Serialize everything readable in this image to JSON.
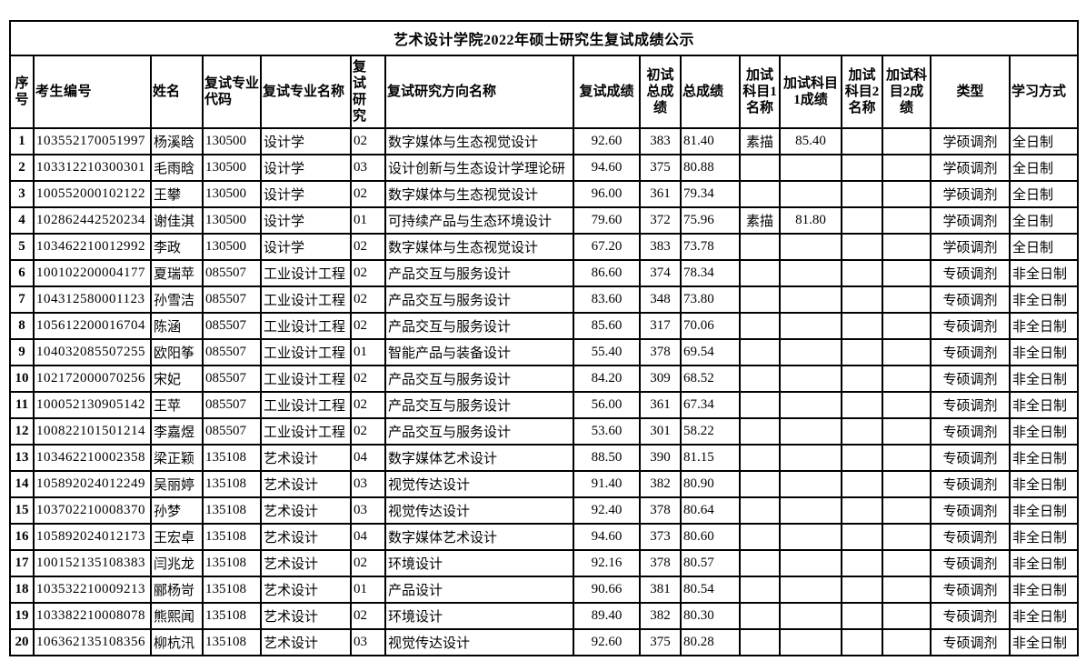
{
  "title": "艺术设计学院2022年硕士研究生复试成绩公示",
  "table": {
    "columns": [
      {
        "key": "seq",
        "label": "序\n号"
      },
      {
        "key": "id",
        "label": "考生编号"
      },
      {
        "key": "name",
        "label": "姓名"
      },
      {
        "key": "major_code",
        "label": "复试专业\n代码"
      },
      {
        "key": "major_name",
        "label": "复试专业名称"
      },
      {
        "key": "dir_code",
        "label": "复\n试\n研\n究"
      },
      {
        "key": "dir_name",
        "label": "复试研究方向名称"
      },
      {
        "key": "retest_score",
        "label": "复试成绩"
      },
      {
        "key": "initial_total",
        "label": "初试\n总成\n绩"
      },
      {
        "key": "total",
        "label": "总成绩"
      },
      {
        "key": "extra1_name",
        "label": "加试\n科目1\n名称"
      },
      {
        "key": "extra1_score",
        "label": "加试科目\n1成绩"
      },
      {
        "key": "extra2_name",
        "label": "加试\n科目2\n名称"
      },
      {
        "key": "extra2_score",
        "label": "加试科\n目2成绩"
      },
      {
        "key": "type",
        "label": "类型"
      },
      {
        "key": "mode",
        "label": "学习方式"
      }
    ],
    "rows": [
      {
        "seq": "1",
        "id": "103552170051997",
        "name": "杨溪晗",
        "major_code": "130500",
        "major_name": "设计学",
        "dir_code": "02",
        "dir_name": "数字媒体与生态视觉设计",
        "retest_score": "92.60",
        "initial_total": "383",
        "total": "81.40",
        "extra1_name": "素描",
        "extra1_score": "85.40",
        "extra2_name": "",
        "extra2_score": "",
        "type": "学硕调剂",
        "mode": "全日制"
      },
      {
        "seq": "2",
        "id": "103312210300301",
        "name": "毛雨晗",
        "major_code": "130500",
        "major_name": "设计学",
        "dir_code": "03",
        "dir_name": "设计创新与生态设计学理论研",
        "retest_score": "94.60",
        "initial_total": "375",
        "total": "80.88",
        "extra1_name": "",
        "extra1_score": "",
        "extra2_name": "",
        "extra2_score": "",
        "type": "学硕调剂",
        "mode": "全日制"
      },
      {
        "seq": "3",
        "id": "100552000102122",
        "name": "王攀",
        "major_code": "130500",
        "major_name": "设计学",
        "dir_code": "02",
        "dir_name": "数字媒体与生态视觉设计",
        "retest_score": "96.00",
        "initial_total": "361",
        "total": "79.34",
        "extra1_name": "",
        "extra1_score": "",
        "extra2_name": "",
        "extra2_score": "",
        "type": "学硕调剂",
        "mode": "全日制"
      },
      {
        "seq": "4",
        "id": "102862442520234",
        "name": "谢佳淇",
        "major_code": "130500",
        "major_name": "设计学",
        "dir_code": "01",
        "dir_name": "可持续产品与生态环境设计",
        "retest_score": "79.60",
        "initial_total": "372",
        "total": "75.96",
        "extra1_name": "素描",
        "extra1_score": "81.80",
        "extra2_name": "",
        "extra2_score": "",
        "type": "学硕调剂",
        "mode": "全日制"
      },
      {
        "seq": "5",
        "id": "103462210012992",
        "name": "李政",
        "major_code": "130500",
        "major_name": "设计学",
        "dir_code": "02",
        "dir_name": "数字媒体与生态视觉设计",
        "retest_score": "67.20",
        "initial_total": "383",
        "total": "73.78",
        "extra1_name": "",
        "extra1_score": "",
        "extra2_name": "",
        "extra2_score": "",
        "type": "学硕调剂",
        "mode": "全日制"
      },
      {
        "seq": "6",
        "id": "100102200004177",
        "name": "夏瑞苹",
        "major_code": "085507",
        "major_name": "工业设计工程",
        "dir_code": "02",
        "dir_name": "产品交互与服务设计",
        "retest_score": "86.60",
        "initial_total": "374",
        "total": "78.34",
        "extra1_name": "",
        "extra1_score": "",
        "extra2_name": "",
        "extra2_score": "",
        "type": "专硕调剂",
        "mode": "非全日制"
      },
      {
        "seq": "7",
        "id": "104312580001123",
        "name": "孙雪洁",
        "major_code": "085507",
        "major_name": "工业设计工程",
        "dir_code": "02",
        "dir_name": "产品交互与服务设计",
        "retest_score": "83.60",
        "initial_total": "348",
        "total": "73.80",
        "extra1_name": "",
        "extra1_score": "",
        "extra2_name": "",
        "extra2_score": "",
        "type": "专硕调剂",
        "mode": "非全日制"
      },
      {
        "seq": "8",
        "id": "105612200016704",
        "name": "陈涵",
        "major_code": "085507",
        "major_name": "工业设计工程",
        "dir_code": "02",
        "dir_name": "产品交互与服务设计",
        "retest_score": "85.60",
        "initial_total": "317",
        "total": "70.06",
        "extra1_name": "",
        "extra1_score": "",
        "extra2_name": "",
        "extra2_score": "",
        "type": "专硕调剂",
        "mode": "非全日制"
      },
      {
        "seq": "9",
        "id": "104032085507255",
        "name": "欧阳筝",
        "major_code": "085507",
        "major_name": "工业设计工程",
        "dir_code": "01",
        "dir_name": "智能产品与装备设计",
        "retest_score": "55.40",
        "initial_total": "378",
        "total": "69.54",
        "extra1_name": "",
        "extra1_score": "",
        "extra2_name": "",
        "extra2_score": "",
        "type": "专硕调剂",
        "mode": "非全日制"
      },
      {
        "seq": "10",
        "id": "102172000070256",
        "name": "宋妃",
        "major_code": "085507",
        "major_name": "工业设计工程",
        "dir_code": "02",
        "dir_name": "产品交互与服务设计",
        "retest_score": "84.20",
        "initial_total": "309",
        "total": "68.52",
        "extra1_name": "",
        "extra1_score": "",
        "extra2_name": "",
        "extra2_score": "",
        "type": "专硕调剂",
        "mode": "非全日制"
      },
      {
        "seq": "11",
        "id": "100052130905142",
        "name": "王苹",
        "major_code": "085507",
        "major_name": "工业设计工程",
        "dir_code": "02",
        "dir_name": "产品交互与服务设计",
        "retest_score": "56.00",
        "initial_total": "361",
        "total": "67.34",
        "extra1_name": "",
        "extra1_score": "",
        "extra2_name": "",
        "extra2_score": "",
        "type": "专硕调剂",
        "mode": "非全日制"
      },
      {
        "seq": "12",
        "id": "100822101501214",
        "name": "李嘉煜",
        "major_code": "085507",
        "major_name": "工业设计工程",
        "dir_code": "02",
        "dir_name": "产品交互与服务设计",
        "retest_score": "53.60",
        "initial_total": "301",
        "total": "58.22",
        "extra1_name": "",
        "extra1_score": "",
        "extra2_name": "",
        "extra2_score": "",
        "type": "专硕调剂",
        "mode": "非全日制"
      },
      {
        "seq": "13",
        "id": "103462210002358",
        "name": "梁正颖",
        "major_code": "135108",
        "major_name": "艺术设计",
        "dir_code": "04",
        "dir_name": "数字媒体艺术设计",
        "retest_score": "88.50",
        "initial_total": "390",
        "total": "81.15",
        "extra1_name": "",
        "extra1_score": "",
        "extra2_name": "",
        "extra2_score": "",
        "type": "专硕调剂",
        "mode": "非全日制"
      },
      {
        "seq": "14",
        "id": "105892024012249",
        "name": "吴丽婷",
        "major_code": "135108",
        "major_name": "艺术设计",
        "dir_code": "03",
        "dir_name": "视觉传达设计",
        "retest_score": "91.40",
        "initial_total": "382",
        "total": "80.90",
        "extra1_name": "",
        "extra1_score": "",
        "extra2_name": "",
        "extra2_score": "",
        "type": "专硕调剂",
        "mode": "非全日制"
      },
      {
        "seq": "15",
        "id": "103702210008370",
        "name": "孙梦",
        "major_code": "135108",
        "major_name": "艺术设计",
        "dir_code": "03",
        "dir_name": "视觉传达设计",
        "retest_score": "92.40",
        "initial_total": "378",
        "total": "80.64",
        "extra1_name": "",
        "extra1_score": "",
        "extra2_name": "",
        "extra2_score": "",
        "type": "专硕调剂",
        "mode": "非全日制"
      },
      {
        "seq": "16",
        "id": "105892024012173",
        "name": "王宏卓",
        "major_code": "135108",
        "major_name": "艺术设计",
        "dir_code": "04",
        "dir_name": "数字媒体艺术设计",
        "retest_score": "94.60",
        "initial_total": "373",
        "total": "80.60",
        "extra1_name": "",
        "extra1_score": "",
        "extra2_name": "",
        "extra2_score": "",
        "type": "专硕调剂",
        "mode": "非全日制"
      },
      {
        "seq": "17",
        "id": "100152135108383",
        "name": "闫兆龙",
        "major_code": "135108",
        "major_name": "艺术设计",
        "dir_code": "02",
        "dir_name": "环境设计",
        "retest_score": "92.16",
        "initial_total": "378",
        "total": "80.57",
        "extra1_name": "",
        "extra1_score": "",
        "extra2_name": "",
        "extra2_score": "",
        "type": "专硕调剂",
        "mode": "非全日制"
      },
      {
        "seq": "18",
        "id": "103532210009213",
        "name": "郦杨岢",
        "major_code": "135108",
        "major_name": "艺术设计",
        "dir_code": "01",
        "dir_name": "产品设计",
        "retest_score": "90.66",
        "initial_total": "381",
        "total": "80.54",
        "extra1_name": "",
        "extra1_score": "",
        "extra2_name": "",
        "extra2_score": "",
        "type": "专硕调剂",
        "mode": "非全日制"
      },
      {
        "seq": "19",
        "id": "103382210008078",
        "name": "熊熙闻",
        "major_code": "135108",
        "major_name": "艺术设计",
        "dir_code": "02",
        "dir_name": "环境设计",
        "retest_score": "89.40",
        "initial_total": "382",
        "total": "80.30",
        "extra1_name": "",
        "extra1_score": "",
        "extra2_name": "",
        "extra2_score": "",
        "type": "专硕调剂",
        "mode": "非全日制"
      },
      {
        "seq": "20",
        "id": "106362135108356",
        "name": "柳杭汛",
        "major_code": "135108",
        "major_name": "艺术设计",
        "dir_code": "03",
        "dir_name": "视觉传达设计",
        "retest_score": "92.60",
        "initial_total": "375",
        "total": "80.28",
        "extra1_name": "",
        "extra1_score": "",
        "extra2_name": "",
        "extra2_score": "",
        "type": "专硕调剂",
        "mode": "非全日制"
      }
    ]
  }
}
